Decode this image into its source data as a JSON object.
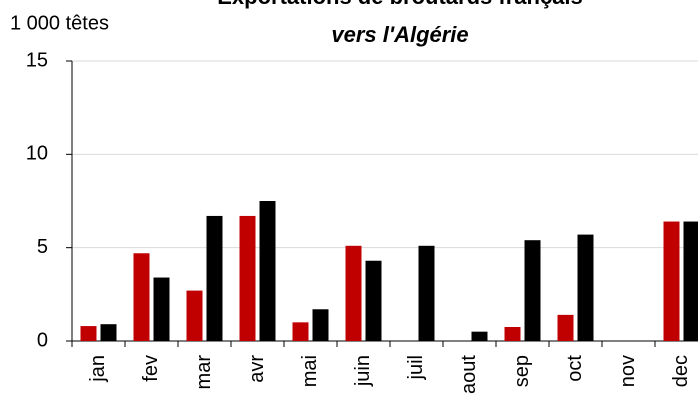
{
  "chart_data": {
    "type": "bar",
    "title": "Exportations de broutards français",
    "subtitle": "vers l'Algérie",
    "y_label": "1 000 têtes",
    "categories": [
      "jan",
      "fev",
      "mar",
      "avr",
      "mai",
      "juin",
      "juil",
      "aout",
      "sep",
      "oct",
      "nov",
      "dec"
    ],
    "series": [
      {
        "color": "#c00000",
        "values": [
          0.8,
          4.7,
          2.7,
          6.7,
          1.0,
          5.1,
          0,
          0,
          0.75,
          1.4,
          0,
          6.4
        ]
      },
      {
        "color": "#000000",
        "values": [
          0.9,
          3.4,
          6.7,
          7.5,
          1.7,
          4.3,
          5.1,
          0.5,
          5.4,
          5.7,
          0,
          6.4
        ]
      }
    ],
    "ylim": [
      0,
      15
    ],
    "yticks": [
      0,
      5,
      10,
      15
    ],
    "grid": true
  }
}
